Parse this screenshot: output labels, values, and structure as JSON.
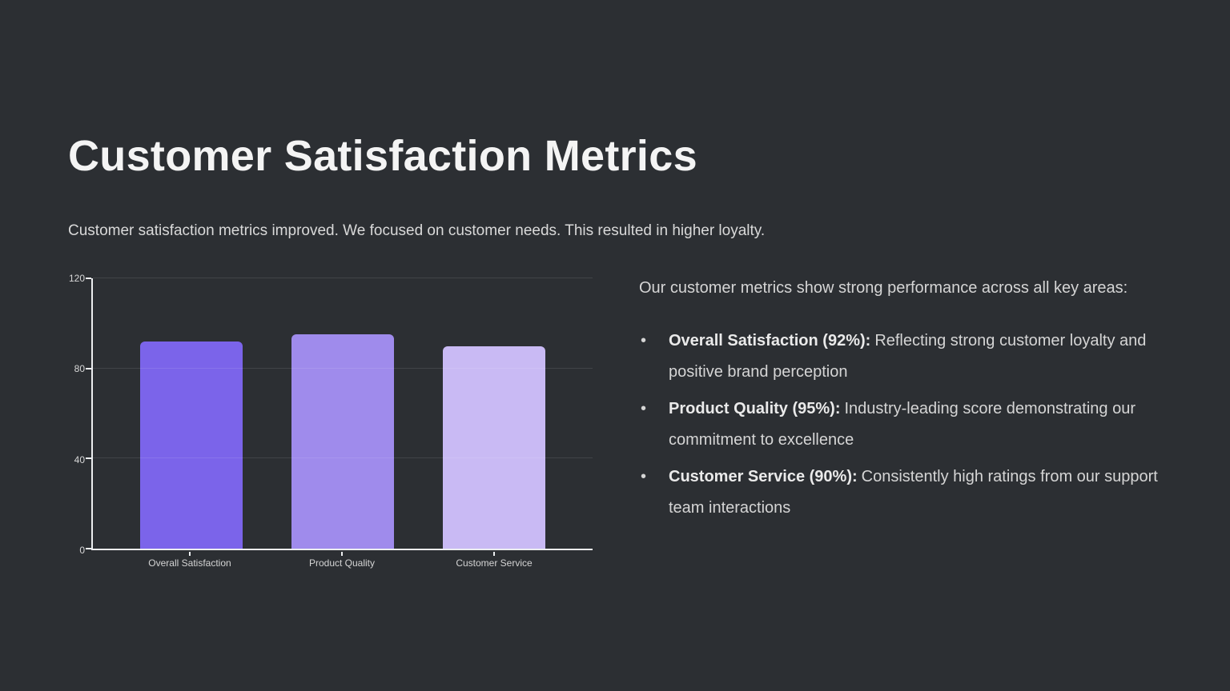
{
  "slide": {
    "title": "Customer Satisfaction Metrics",
    "subtitle": "Customer satisfaction metrics improved. We focused on customer needs. This resulted in higher loyalty."
  },
  "chart_data": {
    "type": "bar",
    "title": "",
    "categories": [
      "Overall Satisfaction",
      "Product Quality",
      "Customer Service"
    ],
    "values": [
      92,
      95,
      90
    ],
    "bar_colors": [
      "#7b64ea",
      "#9f8bec",
      "#c9baf4"
    ],
    "xlabel": "",
    "ylabel": "",
    "ylim": [
      0,
      120
    ],
    "yticks": [
      0,
      40,
      80,
      120
    ],
    "grid": true,
    "legend": false
  },
  "details": {
    "intro": "Our customer metrics show strong performance across all key areas:",
    "bullets": [
      {
        "marker": "•",
        "bold": "Overall Satisfaction (92%):",
        "text": "Reflecting strong customer loyalty and positive brand perception"
      },
      {
        "marker": "•",
        "bold": "Product Quality (95%):",
        "text": "Industry-leading score demonstrating our commitment to excellence"
      },
      {
        "marker": "•",
        "bold": "Customer Service (90%):",
        "text": "Consistently high ratings from our support team interactions"
      }
    ]
  },
  "colors": {
    "background": "#2c2f33",
    "title_text": "#f4f4f4",
    "body_text": "#d5d5d5",
    "axis": "#eceef0",
    "gridline": "rgba(255,255,255,0.10)"
  }
}
